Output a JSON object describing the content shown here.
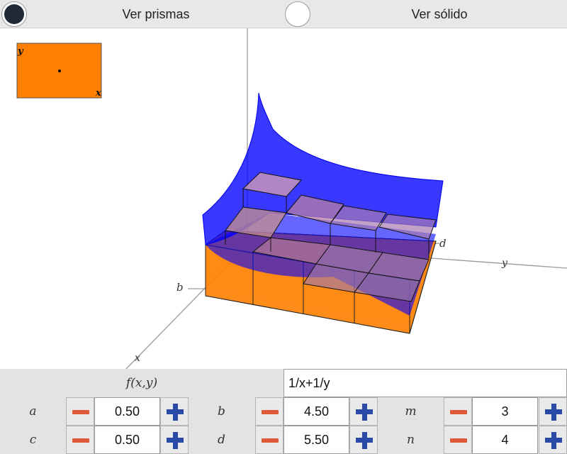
{
  "toggles": [
    {
      "label": "Ver prismas",
      "selected": true
    },
    {
      "label": "Ver sólido",
      "selected": false
    }
  ],
  "viewer": {
    "minimap": {
      "y_label": "y",
      "x_label": "x",
      "fill_color": "#ff8000"
    },
    "axis_labels": {
      "x": "x",
      "y": "y",
      "b": "b",
      "d": "d"
    },
    "colors": {
      "surface": "#0000ff",
      "prism": "#ff8000"
    }
  },
  "function": {
    "label": "f(x,y)",
    "value": "1/x+1/y"
  },
  "params": {
    "a": {
      "label": "a",
      "value": "0.50"
    },
    "b": {
      "label": "b",
      "value": "4.50"
    },
    "m": {
      "label": "m",
      "value": "3"
    },
    "c": {
      "label": "c",
      "value": "0.50"
    },
    "d": {
      "label": "d",
      "value": "5.50"
    },
    "n": {
      "label": "n",
      "value": "4"
    }
  }
}
